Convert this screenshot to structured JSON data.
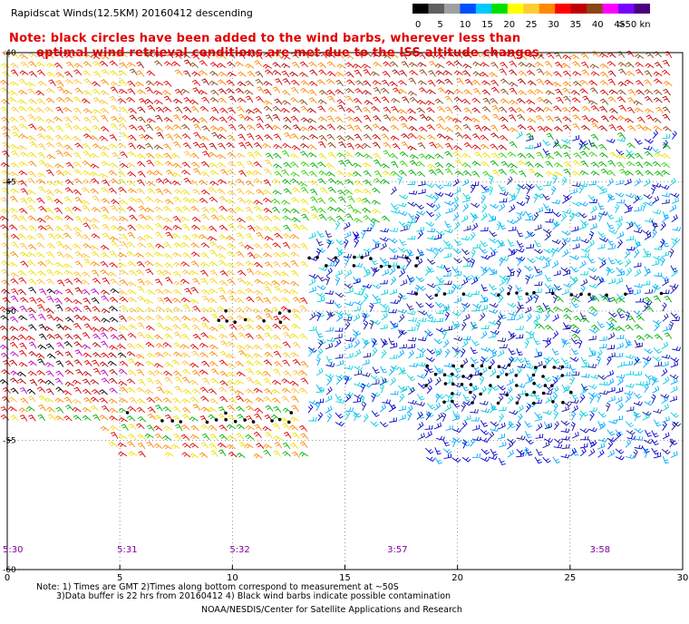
{
  "title": "Rapidscat Winds(12.5KM) 20160412 descending",
  "note": {
    "line1": "Note: black circles have been added to the wind barbs, wherever less than",
    "line2": "optimal wind retrieval conditions are met due to the ISS altitude changes."
  },
  "colorbar": {
    "labels": [
      "0",
      "5",
      "10",
      "15",
      "20",
      "25",
      "30",
      "35",
      "40",
      "45",
      ">50 knots"
    ],
    "colors": [
      "#000000",
      "#606060",
      "#a0a0a0",
      "#0050ff",
      "#00c8ff",
      "#00e000",
      "#ffff00",
      "#ffcc33",
      "#ff8800",
      "#ff0000",
      "#c00000",
      "#8b4513",
      "#ff00ff",
      "#7700ff",
      "#4b0080"
    ]
  },
  "axes": {
    "x_ticks": [
      "0",
      "5",
      "10",
      "15",
      "20",
      "25",
      "30"
    ],
    "y_ticks": [
      "-40",
      "-45",
      "-50",
      "-55",
      "-60"
    ]
  },
  "times": [
    {
      "label": "5:30",
      "lon": 0
    },
    {
      "label": "5:31",
      "lon": 5
    },
    {
      "label": "5:32",
      "lon": 10
    },
    {
      "label": "3:57",
      "lon": 17
    },
    {
      "label": "3:58",
      "lon": 26
    }
  ],
  "map": {
    "lon_range": [
      0,
      30
    ],
    "lat_range": [
      -60,
      -40
    ],
    "grid": true,
    "grid_style": "dotted"
  },
  "footnote": {
    "line1": "Note: 1) Times are GMT 2)Times along bottom correspond to measurement at ~50S",
    "line2": "3)Data buffer is 22 hrs from 20160412 4) Black wind barbs indicate possible contamination"
  },
  "credit": "NOAA/NESDIS/Center for Satellite Applications and Research"
}
